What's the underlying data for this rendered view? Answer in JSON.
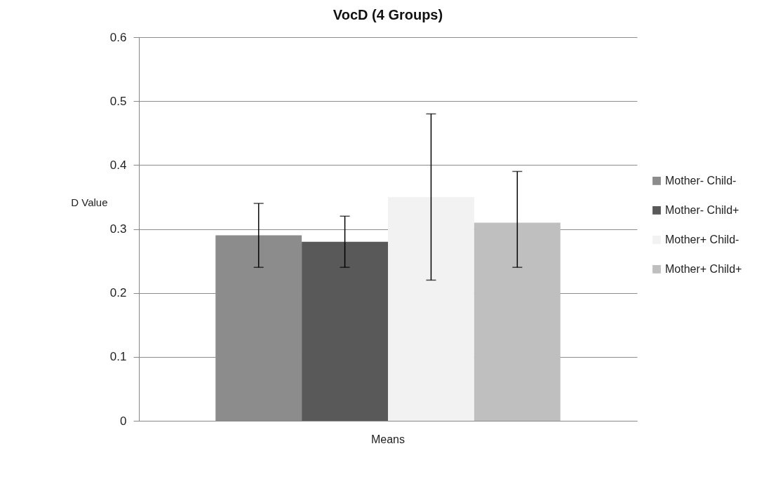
{
  "chart_data": {
    "type": "bar",
    "title": "VocD (4 Groups)",
    "ylabel": "D Value",
    "categories": [
      "Means"
    ],
    "series": [
      {
        "name": "Mother- Child-",
        "color": "#8c8c8c",
        "values": [
          0.29
        ],
        "errors": [
          [
            0.24,
            0.34
          ]
        ]
      },
      {
        "name": "Mother- Child+",
        "color": "#595959",
        "values": [
          0.28
        ],
        "errors": [
          [
            0.24,
            0.32
          ]
        ]
      },
      {
        "name": "Mother+ Child-",
        "color": "#f2f2f2",
        "values": [
          0.35
        ],
        "errors": [
          [
            0.22,
            0.48
          ]
        ]
      },
      {
        "name": "Mother+ Child+",
        "color": "#bfbfbf",
        "values": [
          0.31
        ],
        "errors": [
          [
            0.24,
            0.39
          ]
        ]
      }
    ],
    "ylim": [
      0,
      0.6
    ],
    "yticks": [
      0,
      0.1,
      0.2,
      0.3,
      0.4,
      0.5,
      0.6
    ],
    "grid": "y",
    "legend": "right"
  }
}
